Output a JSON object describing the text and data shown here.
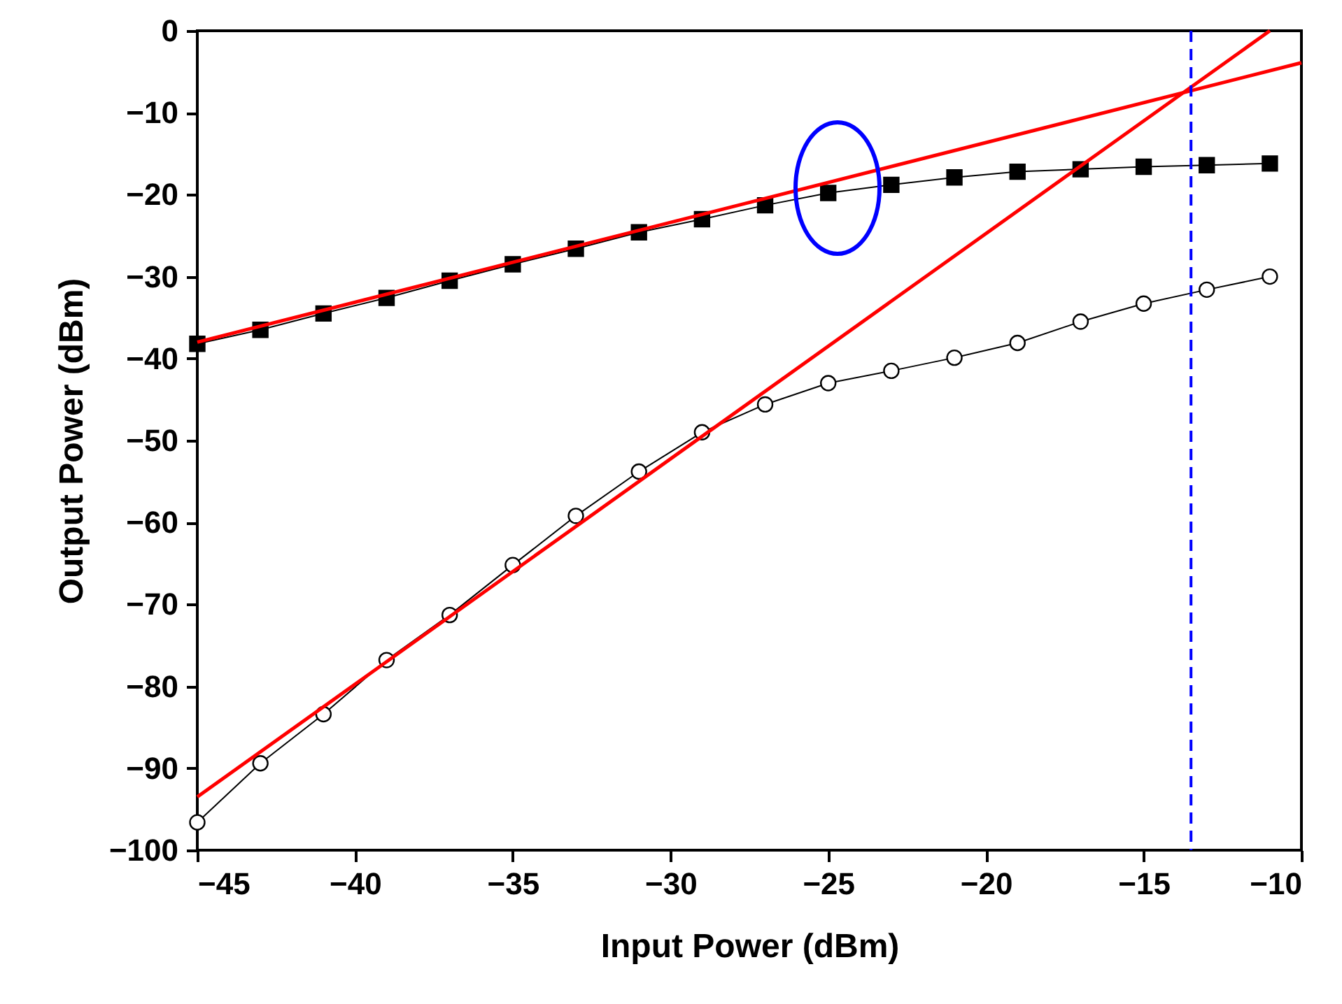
{
  "chart_data": {
    "type": "line",
    "xlabel": "Input Power (dBm)",
    "ylabel": "Output Power (dBm)",
    "xlim": [
      -45,
      -10
    ],
    "xticks": [
      -45,
      -40,
      -35,
      -30,
      -25,
      -20,
      -15,
      -10
    ],
    "ylim": [
      -100,
      0
    ],
    "yticks": [
      -100,
      -90,
      -80,
      -70,
      -60,
      -50,
      -40,
      -30,
      -20,
      -10,
      0
    ],
    "grid": false,
    "legend": false,
    "series": [
      {
        "color": "#000000",
        "marker": "square",
        "x": [
          -45,
          -43,
          -41,
          -39,
          -37,
          -35,
          -33,
          -31,
          -29,
          -27,
          -25,
          -23,
          -21,
          -19,
          -17,
          -15,
          -13,
          -11
        ],
        "values": [
          -38.2,
          -36.5,
          -34.5,
          -32.6,
          -30.5,
          -28.5,
          -26.6,
          -24.6,
          -23.0,
          -21.3,
          -19.8,
          -18.8,
          -17.9,
          -17.2,
          -16.9,
          -16.6,
          -16.4,
          -16.2
        ]
      },
      {
        "color": "#000000",
        "marker": "circle",
        "x": [
          -45,
          -43,
          -41,
          -39,
          -37,
          -35,
          -33,
          -31,
          -29,
          -27,
          -25,
          -23,
          -21,
          -19,
          -17,
          -15,
          -13,
          -11
        ],
        "values": [
          -96.6,
          -89.4,
          -83.4,
          -76.8,
          -71.3,
          -65.2,
          -59.2,
          -53.8,
          -49.0,
          -45.6,
          -43.0,
          -41.5,
          -39.9,
          -38.1,
          -35.5,
          -33.3,
          -31.6,
          -30.0
        ]
      },
      {
        "color": "#ff0000",
        "marker": "none",
        "x": [
          -45,
          -10
        ],
        "values": [
          -38.0,
          -3.9
        ]
      },
      {
        "color": "#ff0000",
        "marker": "none",
        "x": [
          -45,
          -11
        ],
        "values": [
          -93.5,
          0
        ]
      }
    ],
    "ref_lines": [
      {
        "axis": "x",
        "value": -13.5,
        "color": "#0000ff",
        "line_style": "dashed"
      }
    ]
  }
}
